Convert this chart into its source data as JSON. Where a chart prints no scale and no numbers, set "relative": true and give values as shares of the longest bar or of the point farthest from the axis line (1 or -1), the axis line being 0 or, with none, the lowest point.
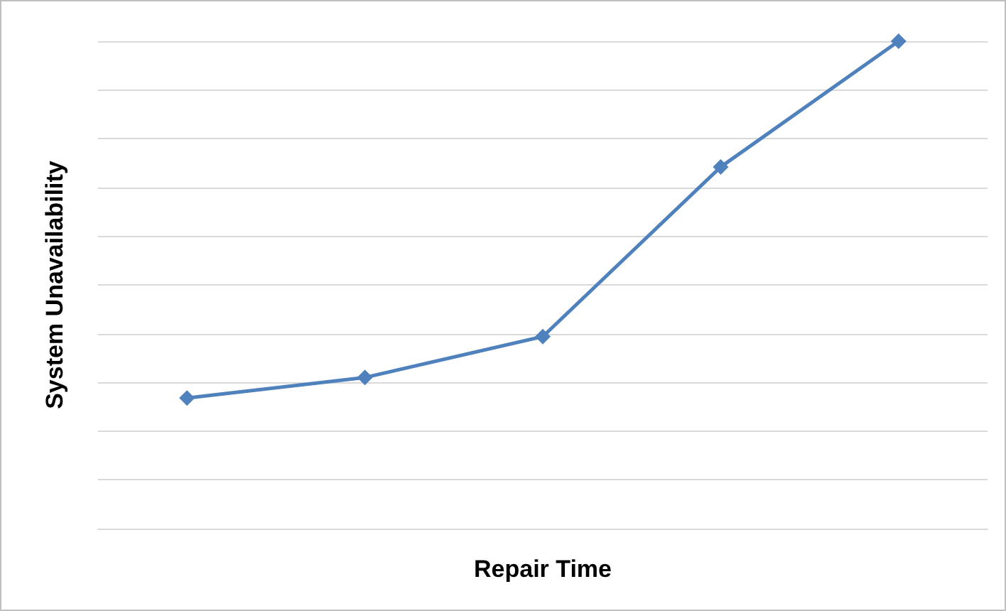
{
  "chart_data": {
    "type": "line",
    "xlabel": "Repair Time",
    "ylabel": "System Unavailability",
    "categories": [
      null,
      null,
      null,
      null,
      null
    ],
    "series": [
      {
        "color": "#4f81bd",
        "values": [
          0.268,
          0.31,
          0.394,
          0.742,
          1
        ]
      }
    ],
    "relative": true,
    "grid": "y",
    "marker": "diamond",
    "line_style": "solid"
  }
}
